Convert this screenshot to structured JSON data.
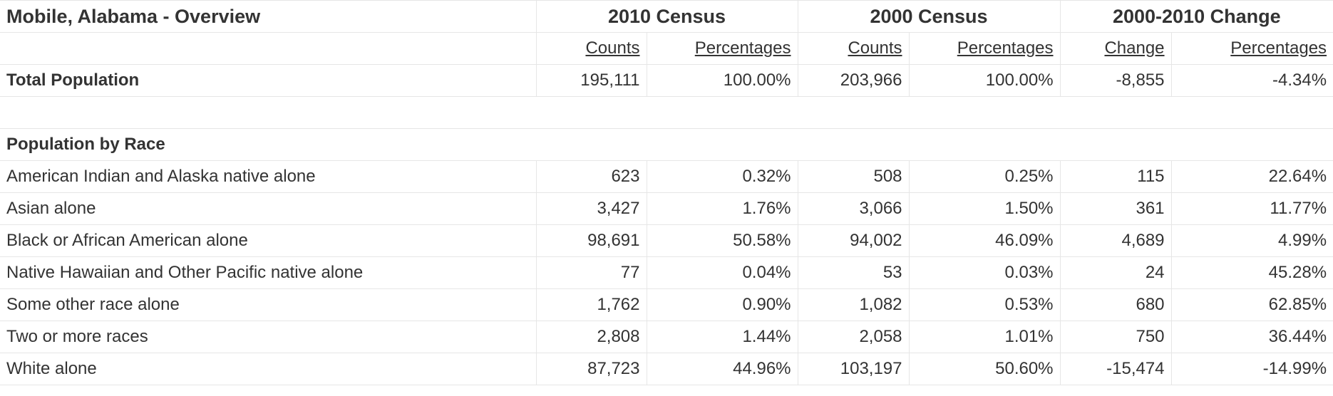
{
  "title": "Mobile, Alabama - Overview",
  "groups": [
    "2010 Census",
    "2000 Census",
    "2000-2010 Change"
  ],
  "subheaders": [
    "Counts",
    "Percentages",
    "Counts",
    "Percentages",
    "Change",
    "Percentages"
  ],
  "total": {
    "label": "Total Population",
    "values": [
      "195,111",
      "100.00%",
      "203,966",
      "100.00%",
      "-8,855",
      "-4.34%"
    ]
  },
  "section_title": "Population by Race",
  "rows": [
    {
      "label": "American Indian and Alaska native alone",
      "values": [
        "623",
        "0.32%",
        "508",
        "0.25%",
        "115",
        "22.64%"
      ]
    },
    {
      "label": "Asian alone",
      "values": [
        "3,427",
        "1.76%",
        "3,066",
        "1.50%",
        "361",
        "11.77%"
      ]
    },
    {
      "label": "Black or African American alone",
      "values": [
        "98,691",
        "50.58%",
        "94,002",
        "46.09%",
        "4,689",
        "4.99%"
      ]
    },
    {
      "label": "Native Hawaiian and Other Pacific native alone",
      "values": [
        "77",
        "0.04%",
        "53",
        "0.03%",
        "24",
        "45.28%"
      ]
    },
    {
      "label": "Some other race alone",
      "values": [
        "1,762",
        "0.90%",
        "1,082",
        "0.53%",
        "680",
        "62.85%"
      ]
    },
    {
      "label": "Two or more races",
      "values": [
        "2,808",
        "1.44%",
        "2,058",
        "1.01%",
        "750",
        "36.44%"
      ]
    },
    {
      "label": "White alone",
      "values": [
        "87,723",
        "44.96%",
        "103,197",
        "50.60%",
        "-15,474",
        "-14.99%"
      ]
    }
  ]
}
